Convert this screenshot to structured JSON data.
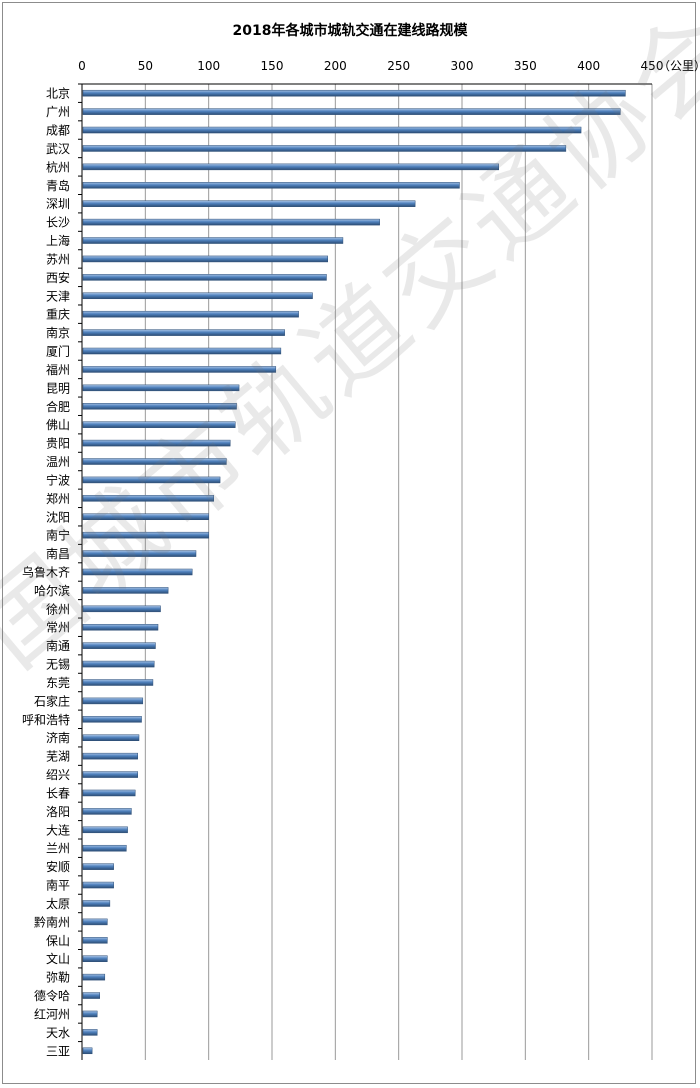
{
  "chart_data": {
    "type": "bar",
    "orientation": "horizontal",
    "title": "2018年各城市城轨交通在建线路规模",
    "unit_label": "（公里）",
    "xlim": [
      0,
      450
    ],
    "xticks": [
      0,
      50,
      100,
      150,
      200,
      250,
      300,
      350,
      400,
      450
    ],
    "x_axis_position": "top",
    "grid": true,
    "categories": [
      "北京",
      "广州",
      "成都",
      "武汉",
      "杭州",
      "青岛",
      "深圳",
      "长沙",
      "上海",
      "苏州",
      "西安",
      "天津",
      "重庆",
      "南京",
      "厦门",
      "福州",
      "昆明",
      "合肥",
      "佛山",
      "贵阳",
      "温州",
      "宁波",
      "郑州",
      "沈阳",
      "南宁",
      "南昌",
      "乌鲁木齐",
      "哈尔滨",
      "徐州",
      "常州",
      "南通",
      "无锡",
      "东莞",
      "石家庄",
      "呼和浩特",
      "济南",
      "芜湖",
      "绍兴",
      "长春",
      "洛阳",
      "大连",
      "兰州",
      "安顺",
      "南平",
      "太原",
      "黔南州",
      "保山",
      "文山",
      "弥勒",
      "德令哈",
      "红河州",
      "天水",
      "三亚"
    ],
    "values": [
      429,
      425,
      394,
      382,
      329,
      298,
      263,
      235,
      206,
      194,
      193,
      182,
      171,
      160,
      157,
      153,
      124,
      122,
      121,
      117,
      114,
      109,
      104,
      100,
      100,
      90,
      87,
      68,
      62,
      60,
      58,
      57,
      56,
      48,
      47,
      45,
      44,
      44,
      42,
      39,
      36,
      35,
      25,
      25,
      22,
      20,
      20,
      20,
      18,
      14,
      12,
      12,
      8
    ],
    "bar_color": "#4f81bd"
  },
  "watermark": "中国城市轨道交通协会"
}
